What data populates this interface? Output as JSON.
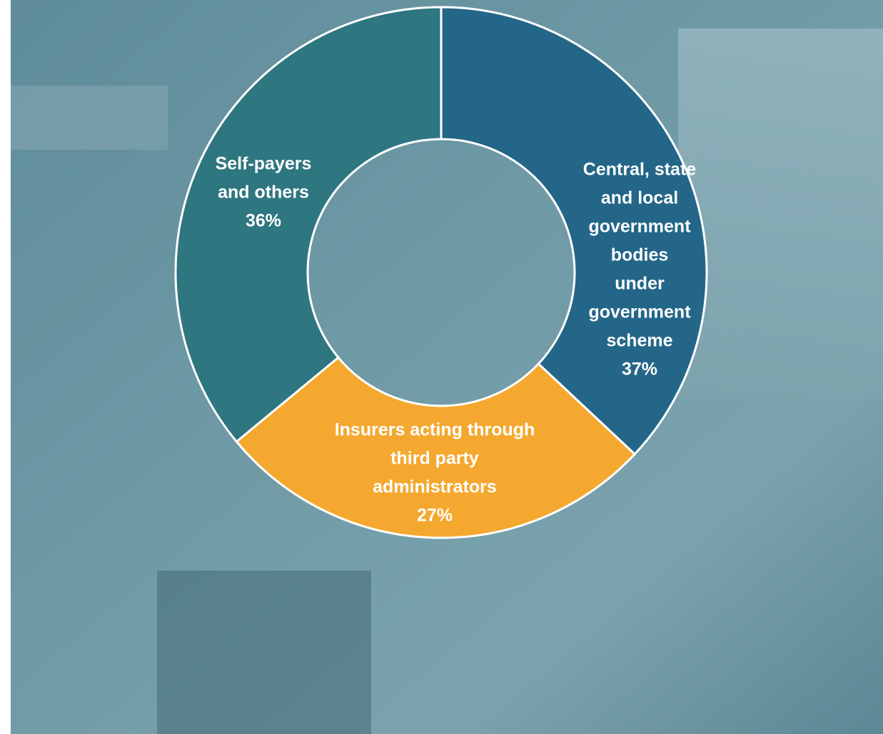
{
  "chart_data": {
    "type": "donut",
    "categories": [
      [
        "Central, state",
        "and local",
        "government",
        "bodies",
        "under",
        "government",
        "scheme"
      ],
      [
        "Insurers acting through",
        "third party",
        "administrators"
      ],
      [
        "Self-payers",
        "and others"
      ]
    ],
    "values": [
      37,
      27,
      36
    ],
    "value_labels": [
      "37%",
      "27%",
      "36%"
    ],
    "colors": [
      "#246688",
      "#f4a82f",
      "#2e7680"
    ]
  }
}
